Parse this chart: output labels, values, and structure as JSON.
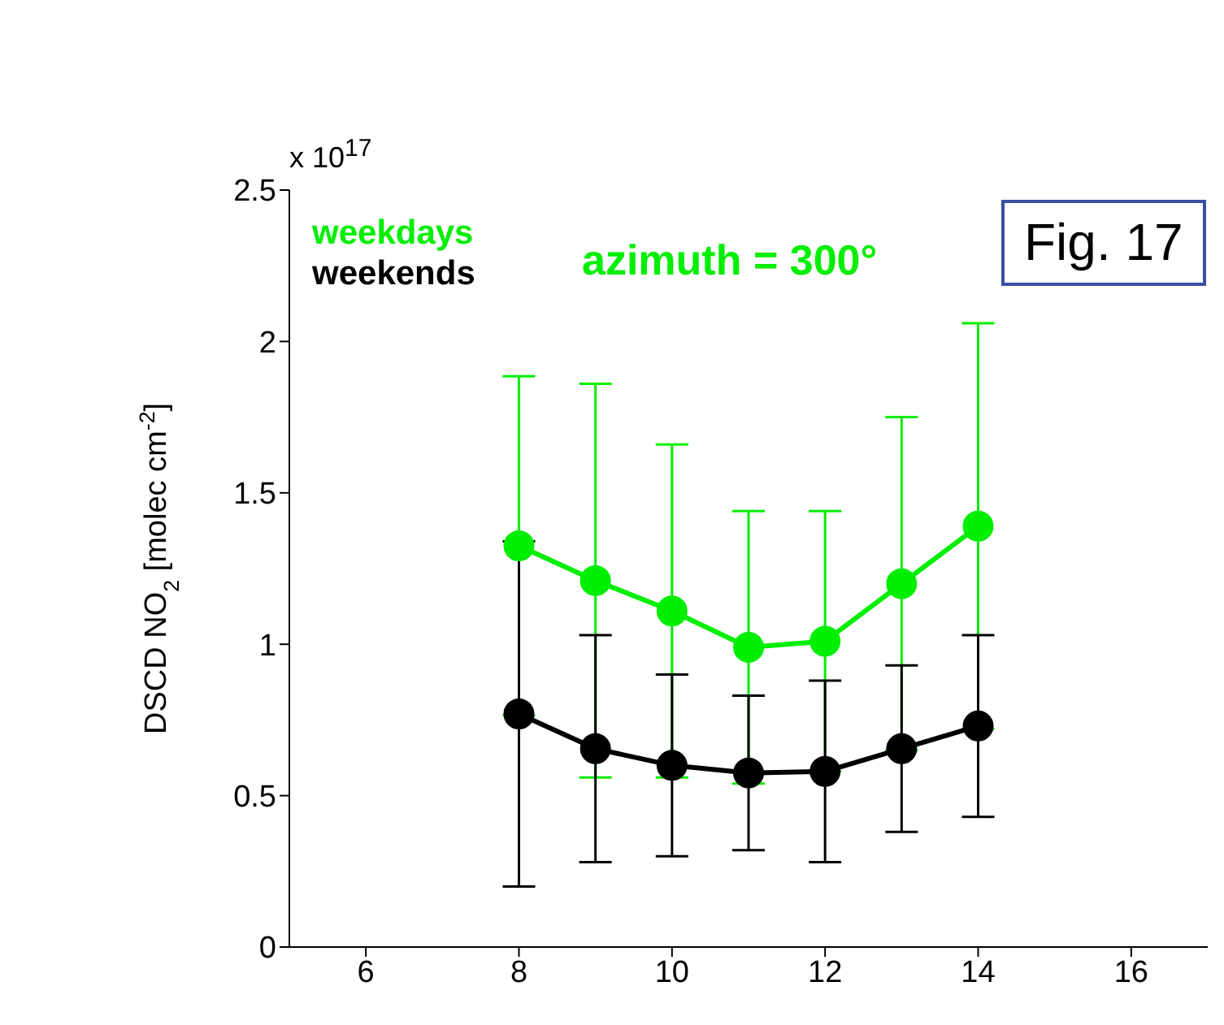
{
  "chart_data": {
    "type": "line",
    "title": "azimuth = 300°",
    "ylabel": "DSCD NO$_{2}$ [molec cm$^{-2}$]",
    "annotations": [
      "x 10$^{17}$",
      "Fig. 17"
    ],
    "x": [
      8,
      9,
      10,
      11,
      12,
      13,
      14
    ],
    "series": [
      {
        "name": "weekdays",
        "color": "#00ee00",
        "values": [
          1.325,
          1.21,
          1.11,
          0.99,
          1.01,
          1.2,
          1.39
        ],
        "errors": [
          0.56,
          0.65,
          0.55,
          0.45,
          0.43,
          0.55,
          0.67
        ]
      },
      {
        "name": "weekends",
        "color": "#000000",
        "values": [
          0.77,
          0.655,
          0.6,
          0.575,
          0.58,
          0.655,
          0.73
        ],
        "errors": [
          0.57,
          0.375,
          0.3,
          0.255,
          0.3,
          0.275,
          0.3
        ]
      }
    ],
    "xlim": [
      5,
      17
    ],
    "xticks": [
      6,
      8,
      10,
      12,
      14,
      16
    ],
    "ylim": [
      0,
      2.5
    ],
    "yticks": [
      0,
      0.5,
      1,
      1.5,
      2,
      2.5
    ],
    "grid": false,
    "legend": "top left",
    "marker": "circle",
    "line_style": "solid"
  }
}
